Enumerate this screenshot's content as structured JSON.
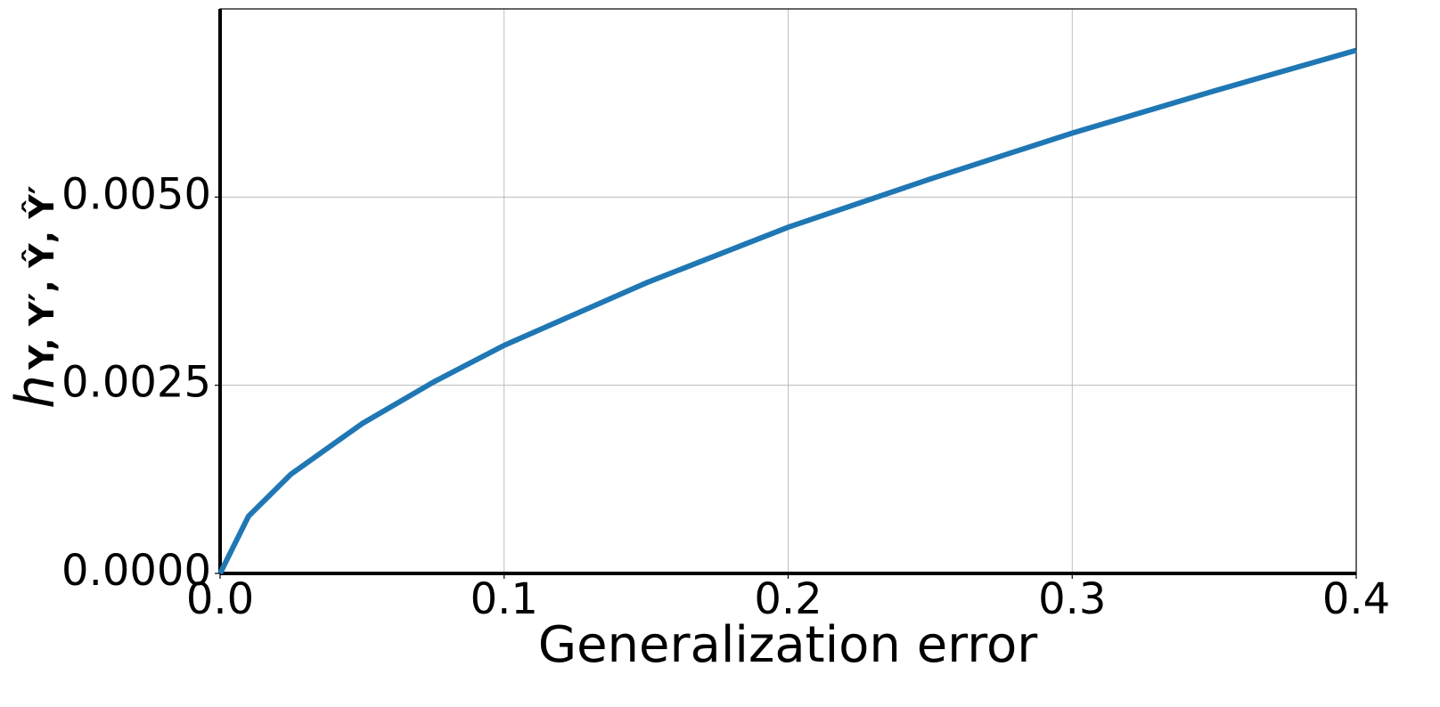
{
  "chart_data": {
    "type": "line",
    "xlabel": "Generalization error",
    "ylabel": "h",
    "ylabel_sub": "Y, Y′, Ŷ, Ŷ′",
    "x": [
      0,
      0.01,
      0.025,
      0.05,
      0.075,
      0.1,
      0.15,
      0.2,
      0.25,
      0.3,
      0.35,
      0.4
    ],
    "series": [
      {
        "color": "#1f77b4",
        "values": [
          0,
          0.00076,
          0.00132,
          0.00199,
          0.00254,
          0.00303,
          0.00386,
          0.0046,
          0.00524,
          0.00585,
          0.00641,
          0.00695
        ]
      }
    ],
    "xlim": [
      0,
      0.4
    ],
    "xticks": [
      {
        "value": 0,
        "label": "0.0"
      },
      0.1,
      0.2,
      0.3,
      0.4
    ],
    "ylim": [
      0,
      0.0075
    ],
    "yticks": [
      {
        "value": 0,
        "label": "0.0000"
      },
      {
        "value": 0.0025,
        "label": "0.0025"
      },
      {
        "value": 0.005,
        "label": "0.0050"
      }
    ],
    "grid": true
  }
}
